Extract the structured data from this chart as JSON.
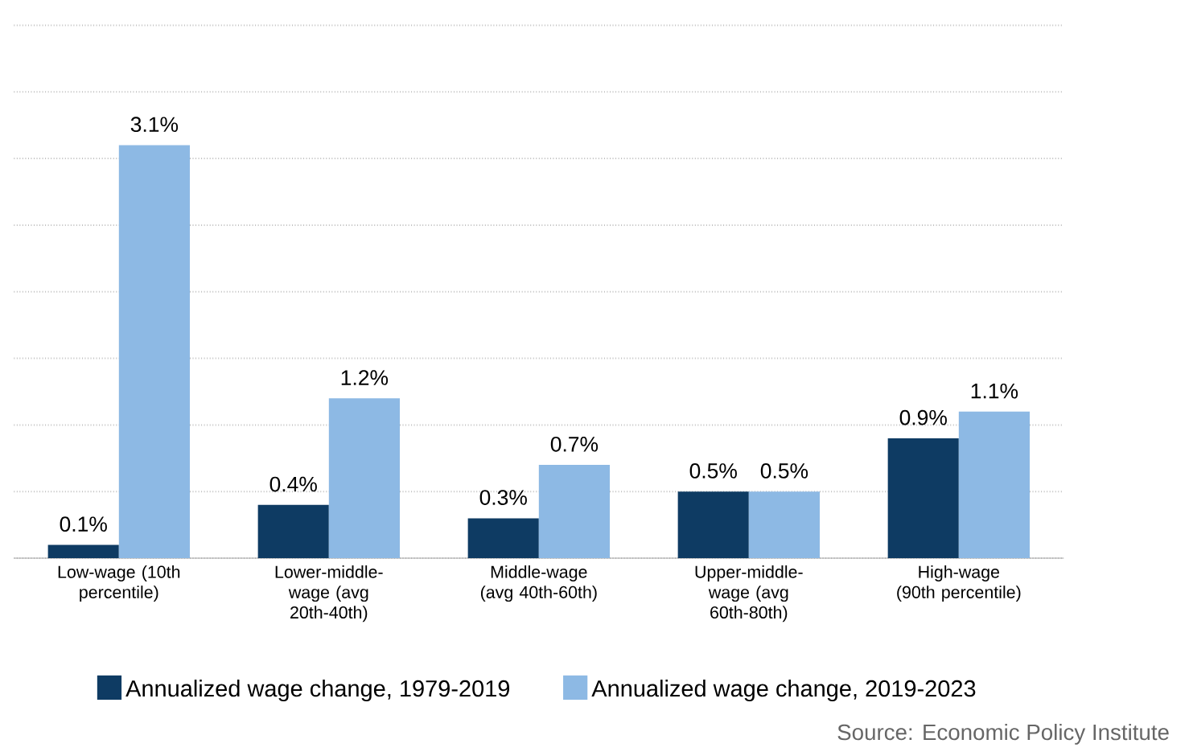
{
  "chart_data": {
    "type": "bar",
    "categories": [
      "Low-wage (10th percentile)",
      "Lower-middle-wage (avg 20th-40th)",
      "Middle-wage (avg 40th-60th)",
      "Upper-middle-wage (avg 60th-80th)",
      "High-wage (90th percentile)"
    ],
    "series": [
      {
        "name": "Annualized wage change, 1979-2019",
        "color": "#0e3b63",
        "values": [
          0.1,
          0.4,
          0.3,
          0.5,
          0.9
        ],
        "value_labels": [
          "0.1%",
          "0.4%",
          "0.3%",
          "0.5%",
          "0.9%"
        ]
      },
      {
        "name": "Annualized wage change, 2019-2023",
        "color": "#8db9e4",
        "values": [
          3.1,
          1.2,
          0.7,
          0.5,
          1.1
        ],
        "value_labels": [
          "3.1%",
          "1.2%",
          "0.7%",
          "0.5%",
          "1.1%"
        ]
      }
    ],
    "tick_labels": "x",
    "grid": "y",
    "legend": "bottom",
    "annotations": [
      "Source: Economic Policy Institute"
    ]
  }
}
